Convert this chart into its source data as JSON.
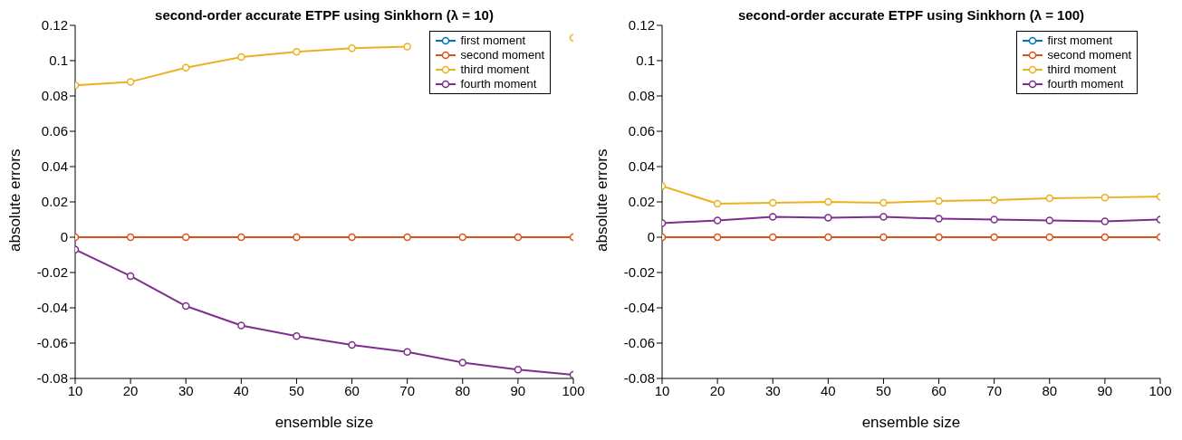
{
  "chart_data": [
    {
      "type": "line",
      "title": "second-order accurate ETPF using Sinkhorn  (λ = 10)",
      "xlabel": "ensemble size",
      "ylabel": "absolute errors",
      "x": [
        10,
        20,
        30,
        40,
        50,
        60,
        70,
        80,
        90,
        100
      ],
      "xlim": [
        10,
        100
      ],
      "xticks": [
        10,
        20,
        30,
        40,
        50,
        60,
        70,
        80,
        90,
        100
      ],
      "ylim": [
        -0.08,
        0.12
      ],
      "yticks": [
        -0.08,
        -0.06,
        -0.04,
        -0.02,
        0,
        0.02,
        0.04,
        0.06,
        0.08,
        0.1,
        0.12
      ],
      "marker": "circle",
      "legend": "top right",
      "grid": false,
      "series": [
        {
          "name": "first moment",
          "color": "#0072bd",
          "values": [
            null,
            null,
            null,
            null,
            null,
            null,
            null,
            null,
            null,
            null
          ]
        },
        {
          "name": "second moment",
          "color": "#d95319",
          "values": [
            0,
            0,
            0,
            0,
            0,
            0,
            0,
            0,
            0,
            0
          ]
        },
        {
          "name": "third moment",
          "color": "#edb120",
          "values": [
            0.086,
            0.088,
            0.096,
            0.102,
            0.105,
            0.107,
            0.108,
            null,
            null,
            0.113
          ]
        },
        {
          "name": "fourth moment",
          "color": "#7e2f8e",
          "values": [
            -0.007,
            -0.022,
            -0.039,
            -0.05,
            -0.056,
            -0.061,
            -0.065,
            -0.071,
            -0.075,
            -0.078
          ]
        }
      ]
    },
    {
      "type": "line",
      "title": "second-order accurate ETPF using Sinkhorn  (λ = 100)",
      "xlabel": "ensemble size",
      "ylabel": "absolute errors",
      "x": [
        10,
        20,
        30,
        40,
        50,
        60,
        70,
        80,
        90,
        100
      ],
      "xlim": [
        10,
        100
      ],
      "xticks": [
        10,
        20,
        30,
        40,
        50,
        60,
        70,
        80,
        90,
        100
      ],
      "ylim": [
        -0.08,
        0.12
      ],
      "yticks": [
        -0.08,
        -0.06,
        -0.04,
        -0.02,
        0,
        0.02,
        0.04,
        0.06,
        0.08,
        0.1,
        0.12
      ],
      "marker": "circle",
      "legend": "top right",
      "grid": false,
      "series": [
        {
          "name": "first moment",
          "color": "#0072bd",
          "values": [
            null,
            null,
            null,
            null,
            null,
            null,
            null,
            null,
            null,
            null
          ]
        },
        {
          "name": "second moment",
          "color": "#d95319",
          "values": [
            0,
            0,
            0,
            0,
            0,
            0,
            0,
            0,
            0,
            0
          ]
        },
        {
          "name": "third moment",
          "color": "#edb120",
          "values": [
            0.029,
            0.019,
            0.0195,
            0.02,
            0.0195,
            0.0205,
            0.021,
            0.022,
            0.0225,
            0.023
          ]
        },
        {
          "name": "fourth moment",
          "color": "#7e2f8e",
          "values": [
            0.008,
            0.0095,
            0.0115,
            0.011,
            0.0115,
            0.0105,
            0.01,
            0.0095,
            0.009,
            0.01
          ]
        }
      ]
    }
  ]
}
